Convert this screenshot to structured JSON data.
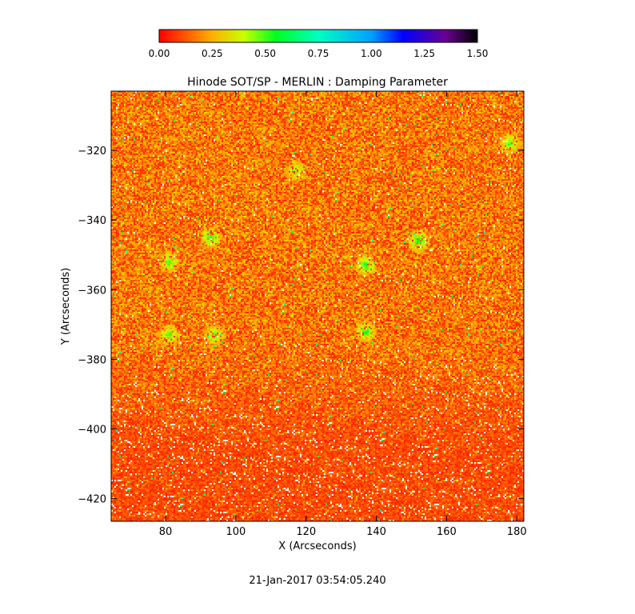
{
  "chart_data": {
    "type": "heatmap",
    "title": "Hinode SOT/SP - MERLIN : Damping Parameter",
    "xlabel": "X (Arcseconds)",
    "ylabel": "Y (Arcseconds)",
    "xlim": [
      64.5,
      182
    ],
    "ylim": [
      -426.5,
      -303
    ],
    "x_ticks": [
      80,
      100,
      120,
      140,
      160,
      180
    ],
    "y_ticks": [
      -320,
      -340,
      -360,
      -380,
      -400,
      -420
    ],
    "colorbar": {
      "range": [
        0.0,
        1.5
      ],
      "ticks": [
        "0.00",
        "0.25",
        "0.50",
        "0.75",
        "1.00",
        "1.25",
        "1.50"
      ],
      "colormap": "rainbow-reversed",
      "stops": [
        {
          "v": 0.0,
          "color": "#ff0000"
        },
        {
          "v": 0.25,
          "color": "#ffb000"
        },
        {
          "v": 0.4,
          "color": "#c8ff00"
        },
        {
          "v": 0.55,
          "color": "#00ff20"
        },
        {
          "v": 0.75,
          "color": "#00ffc0"
        },
        {
          "v": 1.0,
          "color": "#00a0ff"
        },
        {
          "v": 1.15,
          "color": "#0000ff"
        },
        {
          "v": 1.35,
          "color": "#6a0090"
        },
        {
          "v": 1.5,
          "color": "#000000"
        }
      ]
    },
    "field_description": "dense per-pixel damping-parameter map; values mostly 0.0-0.3 (red-orange), lower rows redder with white invalid pixels, scattered green patches ~0.5",
    "green_patches": [
      {
        "x": 93,
        "y": -345,
        "v": 0.5
      },
      {
        "x": 81,
        "y": -352,
        "v": 0.48
      },
      {
        "x": 137,
        "y": -353,
        "v": 0.5
      },
      {
        "x": 152,
        "y": -346,
        "v": 0.52
      },
      {
        "x": 81,
        "y": -373,
        "v": 0.47
      },
      {
        "x": 94,
        "y": -373,
        "v": 0.45
      },
      {
        "x": 137,
        "y": -372,
        "v": 0.5
      },
      {
        "x": 117,
        "y": -326,
        "v": 0.42
      },
      {
        "x": 178,
        "y": -318,
        "v": 0.45
      }
    ]
  },
  "footer": {
    "timestamp": "21-Jan-2017 03:54:05.240"
  }
}
